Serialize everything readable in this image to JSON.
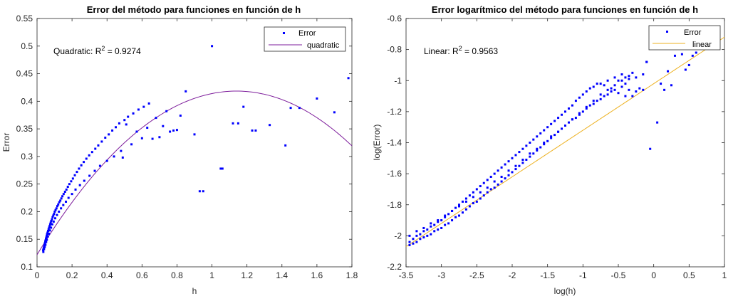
{
  "chart_data": [
    {
      "type": "scatter",
      "title": "Error del método para funciones en función de h",
      "xlabel": "h",
      "ylabel": "Error",
      "xlim": [
        0,
        1.8
      ],
      "ylim": [
        0.1,
        0.55
      ],
      "xticks": [
        0,
        0.2,
        0.4,
        0.6,
        0.8,
        1,
        1.2,
        1.4,
        1.6,
        1.8
      ],
      "xtick_labels": [
        "0",
        "0.2",
        "0.4",
        "0.6",
        "0.8",
        "1",
        "1.2",
        "1.4",
        "1.6",
        "1.8"
      ],
      "yticks": [
        0.1,
        0.15,
        0.2,
        0.25,
        0.3,
        0.35,
        0.4,
        0.45,
        0.5,
        0.55
      ],
      "ytick_labels": [
        "0.1",
        "0.15",
        "0.2",
        "0.25",
        "0.3",
        "0.35",
        "0.4",
        "0.45",
        "0.5",
        "0.55"
      ],
      "grid": false,
      "legend_position": "top-right",
      "annotation": {
        "prefix": "Quadratic: R",
        "sup": "2",
        "suffix": " = 0.9274",
        "x": 0.1,
        "y": 0.488
      },
      "series": [
        {
          "name": "Error",
          "kind": "scatter",
          "color": "#0000ff",
          "marker": "point",
          "x": [
            0.035,
            0.037,
            0.039,
            0.041,
            0.043,
            0.045,
            0.047,
            0.049,
            0.051,
            0.053,
            0.055,
            0.057,
            0.06,
            0.063,
            0.066,
            0.069,
            0.072,
            0.075,
            0.078,
            0.081,
            0.085,
            0.089,
            0.093,
            0.097,
            0.101,
            0.106,
            0.111,
            0.116,
            0.121,
            0.127,
            0.133,
            0.139,
            0.145,
            0.152,
            0.16,
            0.168,
            0.176,
            0.185,
            0.195,
            0.205,
            0.216,
            0.228,
            0.24,
            0.253,
            0.267,
            0.282,
            0.298,
            0.315,
            0.333,
            0.35,
            0.37,
            0.39,
            0.41,
            0.43,
            0.45,
            0.47,
            0.5,
            0.52,
            0.55,
            0.58,
            0.61,
            0.64,
            0.68,
            0.72,
            0.76,
            0.8,
            0.85,
            0.9,
            0.95,
            1.0,
            1.06,
            1.12,
            1.18,
            1.25,
            1.33,
            1.42,
            1.5,
            1.6,
            1.7,
            1.78,
            0.036,
            0.04,
            0.044,
            0.048,
            0.052,
            0.056,
            0.062,
            0.068,
            0.074,
            0.08,
            0.087,
            0.095,
            0.104,
            0.114,
            0.125,
            0.137,
            0.15,
            0.165,
            0.18,
            0.2,
            0.22,
            0.245,
            0.27,
            0.3,
            0.33,
            0.36,
            0.4,
            0.44,
            0.48,
            0.54,
            0.6,
            0.66,
            0.74,
            0.82,
            0.93,
            1.05,
            1.15,
            1.23,
            1.45,
            0.49,
            0.51,
            0.57,
            0.63,
            0.7,
            0.78
          ],
          "y": [
            0.13,
            0.133,
            0.135,
            0.138,
            0.14,
            0.143,
            0.146,
            0.148,
            0.151,
            0.153,
            0.156,
            0.159,
            0.162,
            0.165,
            0.168,
            0.171,
            0.174,
            0.177,
            0.18,
            0.183,
            0.186,
            0.19,
            0.193,
            0.196,
            0.2,
            0.203,
            0.206,
            0.21,
            0.213,
            0.217,
            0.22,
            0.224,
            0.228,
            0.232,
            0.236,
            0.24,
            0.245,
            0.25,
            0.255,
            0.26,
            0.266,
            0.272,
            0.278,
            0.284,
            0.29,
            0.296,
            0.302,
            0.308,
            0.314,
            0.32,
            0.327,
            0.334,
            0.34,
            0.347,
            0.353,
            0.36,
            0.366,
            0.372,
            0.378,
            0.385,
            0.39,
            0.396,
            0.37,
            0.355,
            0.345,
            0.348,
            0.418,
            0.34,
            0.237,
            0.5,
            0.278,
            0.36,
            0.39,
            0.347,
            0.357,
            0.32,
            0.388,
            0.405,
            0.38,
            0.442,
            0.127,
            0.132,
            0.136,
            0.14,
            0.145,
            0.149,
            0.155,
            0.16,
            0.166,
            0.171,
            0.177,
            0.182,
            0.188,
            0.194,
            0.2,
            0.206,
            0.212,
            0.218,
            0.225,
            0.232,
            0.24,
            0.248,
            0.256,
            0.265,
            0.274,
            0.283,
            0.292,
            0.3,
            0.31,
            0.322,
            0.333,
            0.332,
            0.382,
            0.374,
            0.237,
            0.278,
            0.36,
            0.347,
            0.388,
            0.298,
            0.358,
            0.345,
            0.352,
            0.335,
            0.347
          ]
        },
        {
          "name": "quadratic",
          "kind": "line",
          "color": "#7e1e9c",
          "fit": {
            "a": -0.228,
            "b": 0.52,
            "c": 0.122
          },
          "x_from": 0,
          "x_to": 1.8
        }
      ]
    },
    {
      "type": "scatter",
      "title": "Error logarítmico del método para funciones en función de h",
      "xlabel": "log(h)",
      "ylabel": "log(Error)",
      "xlim": [
        -3.5,
        1
      ],
      "ylim": [
        -2.2,
        -0.6
      ],
      "xticks": [
        -3.5,
        -3,
        -2.5,
        -2,
        -1.5,
        -1,
        -0.5,
        0,
        0.5,
        1
      ],
      "xtick_labels": [
        "-3.5",
        "-3",
        "-2.5",
        "-2",
        "-1.5",
        "-1",
        "-0.5",
        "0",
        "0.5",
        "1"
      ],
      "yticks": [
        -2.2,
        -2,
        -1.8,
        -1.6,
        -1.4,
        -1.2,
        -1,
        -0.8,
        -0.6
      ],
      "ytick_labels": [
        "-2.2",
        "-2",
        "-1.8",
        "-1.6",
        "-1.4",
        "-1.2",
        "-1",
        "-0.8",
        "-0.6"
      ],
      "grid": false,
      "legend_position": "top-right",
      "annotation": {
        "prefix": "Linear: R",
        "sup": "2",
        "suffix": " = 0.9563",
        "x": -3.25,
        "y": -0.84
      },
      "series": [
        {
          "name": "Error",
          "kind": "scatter",
          "color": "#0000ff",
          "marker": "point",
          "x": [
            -3.45,
            -3.4,
            -3.35,
            -3.3,
            -3.25,
            -3.2,
            -3.15,
            -3.1,
            -3.05,
            -3.0,
            -2.95,
            -2.9,
            -2.85,
            -2.8,
            -2.75,
            -2.7,
            -2.65,
            -2.6,
            -2.55,
            -2.5,
            -2.45,
            -2.4,
            -2.35,
            -2.3,
            -2.25,
            -2.2,
            -2.15,
            -2.1,
            -2.05,
            -2.0,
            -1.95,
            -1.9,
            -1.85,
            -1.8,
            -1.75,
            -1.7,
            -1.65,
            -1.6,
            -1.55,
            -1.5,
            -1.45,
            -1.4,
            -1.35,
            -1.3,
            -1.25,
            -1.2,
            -1.15,
            -1.1,
            -1.05,
            -1.0,
            -0.95,
            -0.9,
            -0.85,
            -0.8,
            -0.75,
            -0.7,
            -0.65,
            -0.6,
            -0.55,
            -0.5,
            -0.45,
            -0.4,
            -0.35,
            -0.3,
            -0.25,
            -0.2,
            -3.45,
            -3.4,
            -3.35,
            -3.3,
            -3.25,
            -3.2,
            -3.15,
            -3.1,
            -3.05,
            -3.0,
            -2.95,
            -2.9,
            -2.85,
            -2.8,
            -2.75,
            -2.7,
            -2.65,
            -2.6,
            -2.55,
            -2.5,
            -2.45,
            -2.4,
            -2.35,
            -2.3,
            -2.25,
            -2.2,
            -2.15,
            -2.1,
            -2.05,
            -2.0,
            -1.95,
            -1.9,
            -1.85,
            -1.8,
            -1.75,
            -1.7,
            -1.65,
            -1.6,
            -1.55,
            -1.5,
            -1.45,
            -1.4,
            -1.35,
            -1.3,
            -1.25,
            -1.2,
            -1.15,
            -1.1,
            -1.05,
            -1.0,
            -0.95,
            -0.9,
            -0.85,
            -0.8,
            -0.75,
            -0.7,
            -0.65,
            -0.6,
            -0.55,
            -0.5,
            -0.45,
            -0.4,
            -0.35,
            -3.45,
            -3.35,
            -3.25,
            -3.15,
            -3.05,
            -2.95,
            -2.85,
            -2.75,
            -2.65,
            -2.55,
            -2.45,
            -2.35,
            -2.25,
            -2.15,
            -2.05,
            -1.95,
            -1.85,
            -1.75,
            -1.65,
            -1.55,
            -1.45,
            -1.35,
            -1.25,
            -1.15,
            -1.05,
            -0.95,
            -0.85,
            -0.75,
            -0.65,
            -0.55,
            -0.45,
            -0.35,
            -0.25,
            -0.15,
            -0.1,
            -0.05,
            0.05,
            0.1,
            0.15,
            0.2,
            0.25,
            0.3,
            0.4,
            0.45,
            0.5,
            0.55,
            0.6,
            -0.1,
            -0.15,
            -0.3,
            -0.4
          ],
          "y": [
            -2.04,
            -2.02,
            -2.0,
            -1.99,
            -1.97,
            -1.96,
            -1.94,
            -1.93,
            -1.91,
            -1.9,
            -1.88,
            -1.86,
            -1.84,
            -1.82,
            -1.8,
            -1.78,
            -1.76,
            -1.74,
            -1.72,
            -1.7,
            -1.68,
            -1.66,
            -1.64,
            -1.62,
            -1.6,
            -1.58,
            -1.56,
            -1.54,
            -1.52,
            -1.5,
            -1.48,
            -1.46,
            -1.44,
            -1.42,
            -1.4,
            -1.38,
            -1.36,
            -1.34,
            -1.32,
            -1.3,
            -1.28,
            -1.26,
            -1.24,
            -1.22,
            -1.2,
            -1.18,
            -1.16,
            -1.13,
            -1.11,
            -1.09,
            -1.07,
            -1.05,
            -1.04,
            -1.02,
            -1.02,
            -1.03,
            -1.0,
            -1.05,
            -0.98,
            -1.0,
            -0.96,
            -1.02,
            -0.97,
            -0.95,
            -1.07,
            -1.05,
            -2.06,
            -2.05,
            -2.04,
            -2.02,
            -2.01,
            -2.0,
            -1.99,
            -1.97,
            -1.96,
            -1.95,
            -1.93,
            -1.92,
            -1.9,
            -1.88,
            -1.87,
            -1.85,
            -1.83,
            -1.81,
            -1.79,
            -1.78,
            -1.76,
            -1.74,
            -1.72,
            -1.7,
            -1.69,
            -1.67,
            -1.65,
            -1.63,
            -1.61,
            -1.59,
            -1.57,
            -1.55,
            -1.53,
            -1.51,
            -1.49,
            -1.47,
            -1.45,
            -1.43,
            -1.41,
            -1.39,
            -1.37,
            -1.35,
            -1.33,
            -1.31,
            -1.29,
            -1.27,
            -1.25,
            -1.24,
            -1.22,
            -1.2,
            -1.18,
            -1.16,
            -1.15,
            -1.13,
            -1.12,
            -1.1,
            -1.09,
            -1.07,
            -1.06,
            -1.08,
            -1.04,
            -1.1,
            -1.06,
            -2.0,
            -1.97,
            -1.95,
            -1.92,
            -1.9,
            -1.87,
            -1.84,
            -1.81,
            -1.78,
            -1.75,
            -1.72,
            -1.69,
            -1.65,
            -1.62,
            -1.58,
            -1.55,
            -1.51,
            -1.47,
            -1.44,
            -1.4,
            -1.36,
            -1.33,
            -1.29,
            -1.25,
            -1.21,
            -1.17,
            -1.13,
            -1.09,
            -1.06,
            -1.03,
            -1.0,
            -0.99,
            -0.98,
            -0.96,
            -0.88,
            -1.44,
            -1.27,
            -1.02,
            -1.06,
            -0.94,
            -1.03,
            -0.84,
            -0.83,
            -0.93,
            -0.9,
            -0.84,
            -0.82,
            -0.88,
            -1.06,
            -1.1,
            -0.98
          ]
        },
        {
          "name": "linear",
          "kind": "line",
          "color": "#edb120",
          "fit": {
            "slope": 0.3,
            "intercept": -1.02
          },
          "x_from": -3.5,
          "x_to": 1
        }
      ]
    }
  ]
}
